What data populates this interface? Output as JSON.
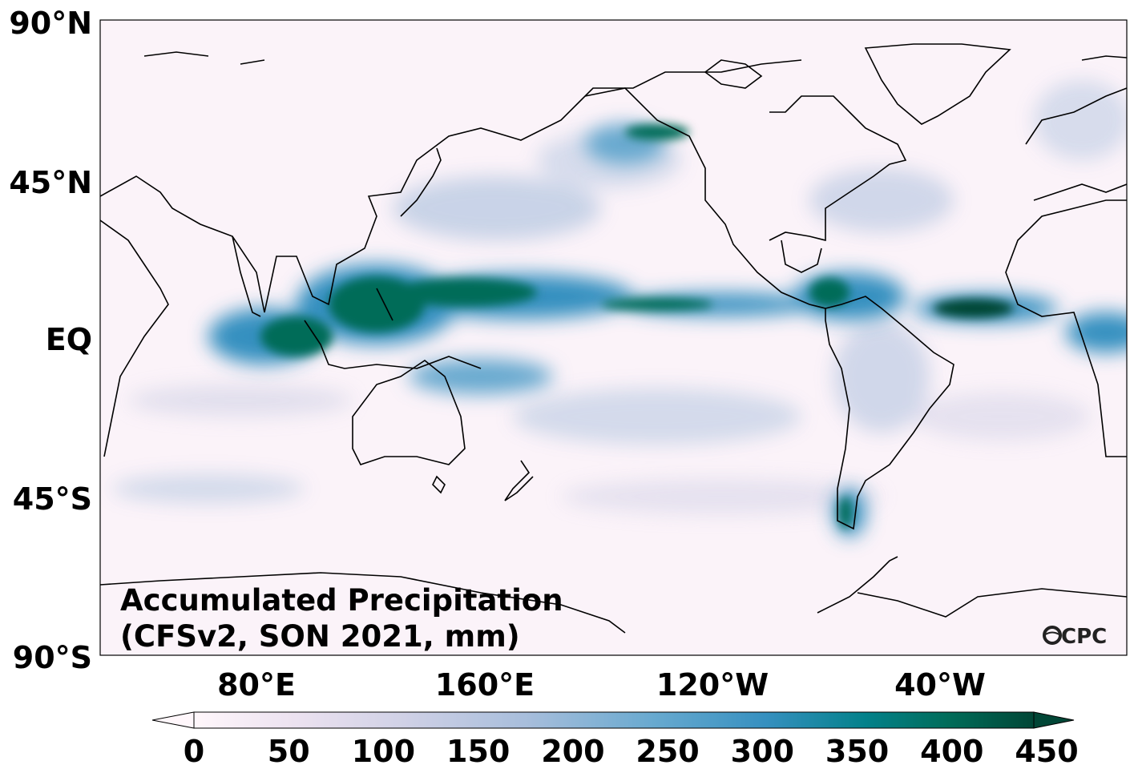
{
  "map": {
    "title_line1": "Accumulated Precipitation",
    "title_line2": "(CFSv2, SON 2021, mm)",
    "logo": "CPC",
    "lat_labels": [
      "90°N",
      "45°N",
      "EQ",
      "45°S",
      "90°S"
    ],
    "lon_labels": [
      "80°E",
      "160°E",
      "120°W",
      "40°W"
    ]
  },
  "colorbar": {
    "colormap": "PuBuGn",
    "ticks": [
      "0",
      "50",
      "100",
      "150",
      "200",
      "250",
      "300",
      "350",
      "400",
      "450"
    ],
    "colors": [
      "#fff7fb",
      "#ece2f0",
      "#d0d1e6",
      "#a6bddb",
      "#67a9cf",
      "#3690c0",
      "#02818a",
      "#016c59",
      "#014636"
    ],
    "extend": "both"
  }
}
